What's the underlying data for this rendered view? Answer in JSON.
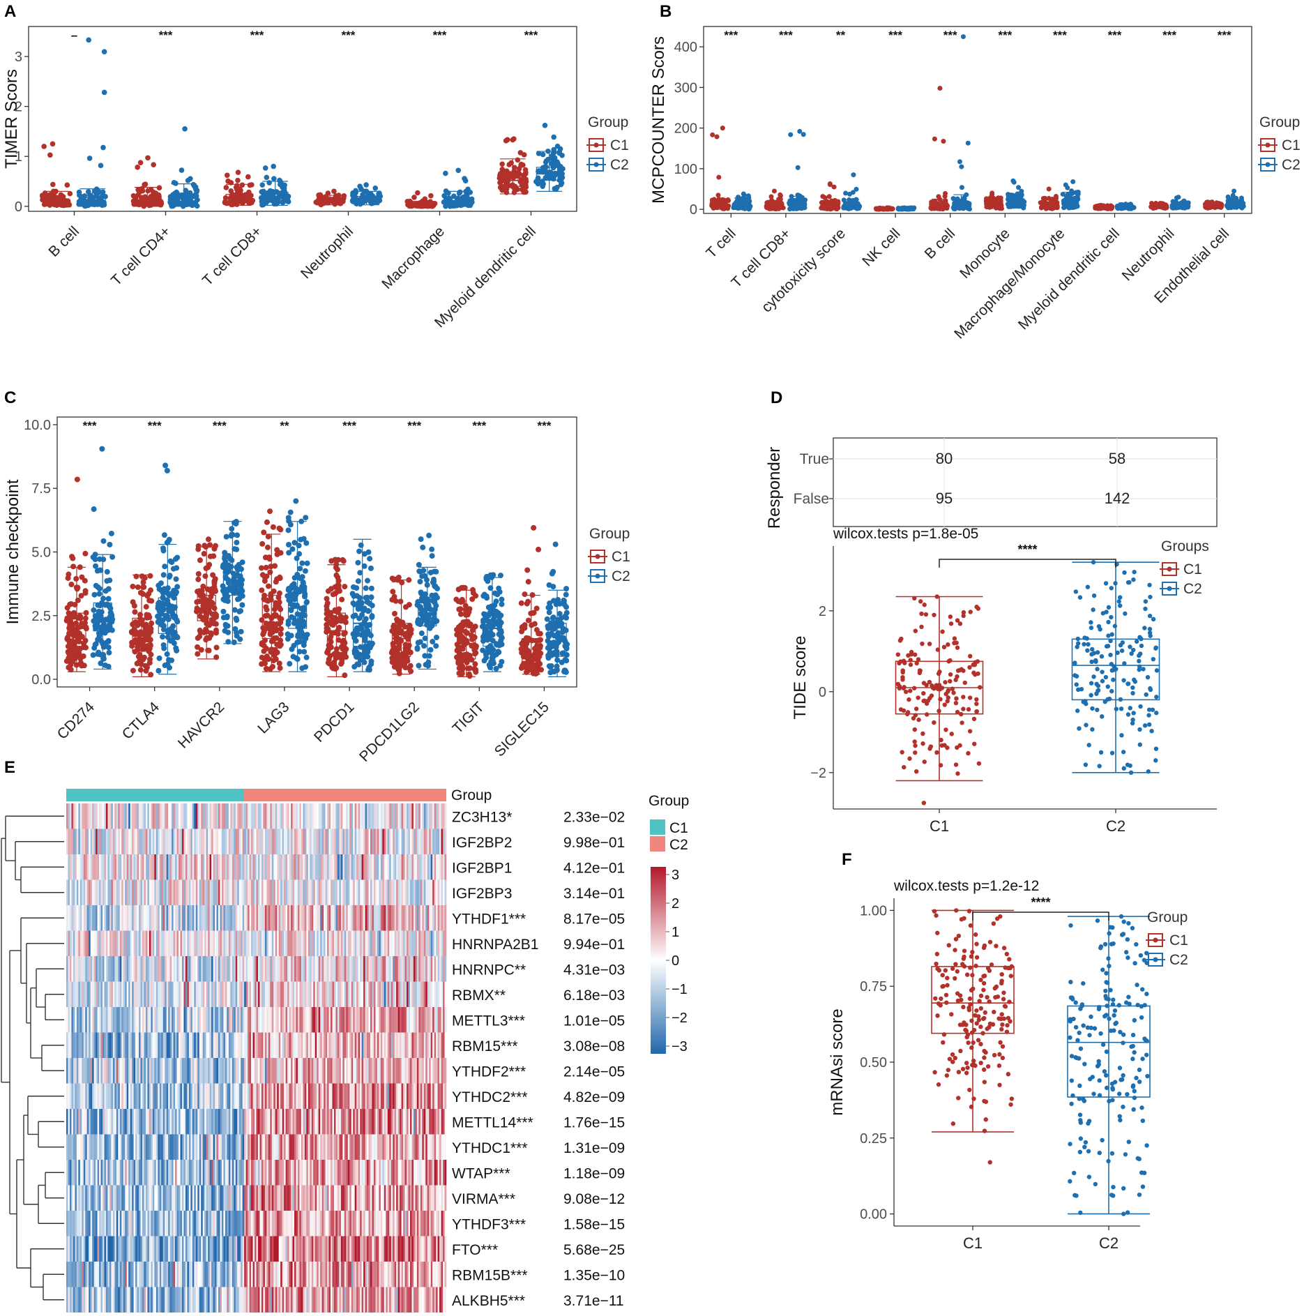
{
  "colors": {
    "c1": "#b2312a",
    "c2": "#1e6fb0",
    "c1_bar": "#4fc2c4",
    "c2_bar": "#f0877f",
    "heat_low": "#2166ac",
    "heat_mid": "#ffffff",
    "heat_high": "#b2182b"
  },
  "chart_data": [
    {
      "panel": "A",
      "type": "box-strip",
      "ylabel": "TIMER Scors",
      "ylim": [
        -0.1,
        3.6
      ],
      "yticks": [
        0,
        1,
        2,
        3
      ],
      "legend": {
        "title": "Group",
        "items": [
          "C1",
          "C2"
        ]
      },
      "categories": [
        "B cell",
        "T cell CD4+",
        "T cell CD8+",
        "Neutrophil",
        "Macrophage",
        "Myeloid dendritic cell"
      ],
      "significance": [
        "–",
        "***",
        "***",
        "***",
        "***",
        "***"
      ],
      "series": [
        {
          "name": "C1",
          "box": [
            [
              0.01,
              0.04,
              0.08,
              0.15,
              0.3
            ],
            [
              0.0,
              0.06,
              0.12,
              0.2,
              0.38
            ],
            [
              0.02,
              0.1,
              0.16,
              0.24,
              0.44
            ],
            [
              0.03,
              0.08,
              0.11,
              0.15,
              0.22
            ],
            [
              0.0,
              0.01,
              0.02,
              0.05,
              0.1
            ],
            [
              0.25,
              0.4,
              0.52,
              0.65,
              0.95
            ]
          ],
          "max": [
            1.25,
            0.97,
            0.68,
            0.3,
            0.27,
            1.35
          ]
        },
        {
          "name": "C2",
          "box": [
            [
              0.0,
              0.05,
              0.09,
              0.17,
              0.35
            ],
            [
              0.0,
              0.09,
              0.16,
              0.24,
              0.45
            ],
            [
              0.02,
              0.12,
              0.2,
              0.28,
              0.5
            ],
            [
              0.03,
              0.1,
              0.14,
              0.2,
              0.3
            ],
            [
              0.0,
              0.05,
              0.1,
              0.16,
              0.3
            ],
            [
              0.3,
              0.52,
              0.65,
              0.78,
              1.1
            ]
          ],
          "max": [
            3.33,
            1.55,
            0.8,
            0.43,
            0.72,
            1.62
          ]
        }
      ]
    },
    {
      "panel": "B",
      "type": "box-strip",
      "ylabel": "MCPCOUNTER Scors",
      "ylim": [
        -10,
        450
      ],
      "yticks": [
        0,
        100,
        200,
        300,
        400
      ],
      "legend": {
        "title": "Group",
        "items": [
          "C1",
          "C2"
        ]
      },
      "categories": [
        "T cell",
        "T cell CD8+",
        "cytotoxicity score",
        "NK cell",
        "B cell",
        "Monocyte",
        "Macrophage/Monocyte",
        "Myeloid dendritic cell",
        "Neutrophil",
        "Endothelial cell"
      ],
      "significance": [
        "***",
        "***",
        "**",
        "***",
        "***",
        "***",
        "***",
        "***",
        "***",
        "***"
      ],
      "series": [
        {
          "name": "C1",
          "box": [
            [
              0,
              5,
              9,
              14,
              25
            ],
            [
              0,
              4,
              8,
              13,
              22
            ],
            [
              0,
              4,
              7,
              12,
              22
            ],
            [
              0,
              1,
              1.5,
              2,
              3
            ],
            [
              0,
              3,
              6,
              12,
              25
            ],
            [
              2,
              7,
              11,
              16,
              28
            ],
            [
              1,
              6,
              10,
              15,
              27
            ],
            [
              1,
              3,
              4,
              6,
              9
            ],
            [
              2,
              5,
              7,
              9,
              13
            ],
            [
              2,
              6,
              8,
              11,
              16
            ]
          ],
          "max": [
            200,
            45,
            63,
            4,
            298,
            40,
            50,
            10,
            15,
            18
          ]
        },
        {
          "name": "C2",
          "box": [
            [
              0,
              5,
              9,
              15,
              28
            ],
            [
              0,
              6,
              11,
              18,
              32
            ],
            [
              0,
              5,
              9,
              14,
              24
            ],
            [
              0,
              1,
              1.5,
              2,
              3
            ],
            [
              0,
              5,
              10,
              18,
              36
            ],
            [
              3,
              10,
              15,
              22,
              38
            ],
            [
              3,
              10,
              16,
              24,
              42
            ],
            [
              1,
              4,
              5,
              7,
              11
            ],
            [
              3,
              6,
              9,
              12,
              18
            ],
            [
              3,
              8,
              11,
              15,
              24
            ]
          ],
          "max": [
            38,
            192,
            85,
            4,
            425,
            70,
            68,
            13,
            30,
            45
          ]
        }
      ]
    },
    {
      "panel": "C",
      "type": "box-strip",
      "ylabel": "Immune checkpoint",
      "ylim": [
        -0.3,
        10.3
      ],
      "yticks": [
        0.0,
        2.5,
        5.0,
        7.5,
        10.0
      ],
      "legend": {
        "title": "Group",
        "items": [
          "C1",
          "C2"
        ]
      },
      "categories": [
        "CD274",
        "CTLA4",
        "HAVCR2",
        "LAG3",
        "PDCD1",
        "PDCD1LG2",
        "TIGIT",
        "SIGLEC15"
      ],
      "significance": [
        "***",
        "***",
        "***",
        "**",
        "***",
        "***",
        "***",
        "***"
      ],
      "series": [
        {
          "name": "C1",
          "box": [
            [
              0.3,
              1.3,
              2.0,
              2.6,
              4.4
            ],
            [
              0.1,
              1.1,
              1.7,
              2.4,
              4.1
            ],
            [
              0.8,
              2.3,
              2.8,
              3.3,
              5.2
            ],
            [
              0.3,
              1.6,
              2.5,
              3.3,
              5.7
            ],
            [
              0.1,
              1.0,
              1.9,
              2.6,
              4.5
            ],
            [
              0.2,
              0.9,
              1.6,
              2.2,
              3.9
            ],
            [
              0.1,
              0.8,
              1.4,
              2.1,
              3.5
            ],
            [
              0.2,
              0.6,
              1.0,
              1.6,
              3.3
            ]
          ],
          "max": [
            7.85,
            4.1,
            5.5,
            6.6,
            4.7,
            4.0,
            3.6,
            5.95
          ]
        },
        {
          "name": "C2",
          "box": [
            [
              0.4,
              1.9,
              2.4,
              3.0,
              4.9
            ],
            [
              0.2,
              1.8,
              2.5,
              3.2,
              5.3
            ],
            [
              1.4,
              3.3,
              3.9,
              4.4,
              6.2
            ],
            [
              0.3,
              2.0,
              2.8,
              3.6,
              6.2
            ],
            [
              0.3,
              1.3,
              2.2,
              3.2,
              5.5
            ],
            [
              0.4,
              2.1,
              2.6,
              3.1,
              4.4
            ],
            [
              0.3,
              1.3,
              2.0,
              2.6,
              4.0
            ],
            [
              0.1,
              0.9,
              1.5,
              2.2,
              3.5
            ]
          ],
          "max": [
            9.05,
            8.4,
            6.2,
            7.0,
            5.5,
            5.65,
            4.1,
            5.3
          ]
        }
      ]
    },
    {
      "panel": "D",
      "type": "box-strip+table",
      "table": {
        "ylabel": "Responder",
        "rows": [
          "True",
          "False"
        ],
        "values": [
          [
            "80",
            "58"
          ],
          [
            "95",
            "142"
          ]
        ]
      },
      "ylabel": "TIDE score",
      "ylim": [
        -2.9,
        3.6
      ],
      "yticks": [
        -2,
        0,
        2
      ],
      "categories": [
        "C1",
        "C2"
      ],
      "test": "wilcox.tests p=1.8e-05",
      "significance": "****",
      "legend": {
        "title": "Groups",
        "items": [
          "C1",
          "C2"
        ]
      },
      "box": [
        [
          -2.2,
          -0.55,
          0.1,
          0.75,
          2.35
        ],
        [
          -2.0,
          -0.2,
          0.65,
          1.3,
          3.2
        ]
      ],
      "extremes": [
        [
          -2.75,
          2.35
        ],
        [
          -2.0,
          3.2
        ]
      ]
    },
    {
      "panel": "E",
      "type": "heatmap",
      "annotation_label": "Group",
      "legend": {
        "title": "Group",
        "items": [
          "C1",
          "C2"
        ]
      },
      "color_scale": [
        -3,
        3
      ],
      "scale_ticks": [
        "3",
        "2",
        "1",
        "0",
        "−1",
        "−2",
        "−3"
      ],
      "genes": [
        "ZC3H13*",
        "IGF2BP2",
        "IGF2BP1",
        "IGF2BP3",
        "YTHDF1***",
        "HNRNPA2B1",
        "HNRNPC**",
        "RBMX**",
        "METTL3***",
        "RBM15***",
        "YTHDF2***",
        "YTHDC2***",
        "METTL14***",
        "YTHDC1***",
        "WTAP***",
        "VIRMA***",
        "YTHDF3***",
        "FTO***",
        "RBM15B***",
        "ALKBH5***"
      ],
      "pvalues": [
        "2.33e−02",
        "9.98e−01",
        "4.12e−01",
        "3.14e−01",
        "8.17e−05",
        "9.94e−01",
        "4.31e−03",
        "6.18e−03",
        "1.01e−05",
        "3.08e−08",
        "2.14e−05",
        "4.82e−09",
        "1.76e−15",
        "1.31e−09",
        "1.18e−09",
        "9.08e−12",
        "1.58e−15",
        "5.68e−25",
        "1.35e−10",
        "3.71e−11"
      ],
      "mean_c1": [
        0.0,
        0.0,
        0.05,
        0.0,
        -0.25,
        0.0,
        -0.15,
        -0.15,
        -0.3,
        -0.35,
        -0.3,
        -0.4,
        -0.45,
        -0.4,
        -0.4,
        -0.45,
        -0.45,
        -0.55,
        -0.4,
        -0.4
      ],
      "mean_c2": [
        0.05,
        0.0,
        0.0,
        0.0,
        0.25,
        0.0,
        0.15,
        0.15,
        0.3,
        0.35,
        0.3,
        0.4,
        0.45,
        0.4,
        0.4,
        0.45,
        0.45,
        0.55,
        0.4,
        0.4
      ]
    },
    {
      "panel": "F",
      "type": "box-strip",
      "ylabel": "mRNAsi score",
      "ylim": [
        -0.04,
        1.04
      ],
      "yticks": [
        0.0,
        0.25,
        0.5,
        0.75,
        1.0
      ],
      "ytick_labels": [
        "0.00",
        "0.25",
        "0.50",
        "0.75",
        "1.00"
      ],
      "categories": [
        "C1",
        "C2"
      ],
      "test": "wilcox.tests p=1.2e-12",
      "significance": "****",
      "legend": {
        "title": "Group",
        "items": [
          "C1",
          "C2"
        ]
      },
      "box": [
        [
          0.27,
          0.595,
          0.695,
          0.815,
          1.0
        ],
        [
          0.0,
          0.385,
          0.565,
          0.685,
          0.98
        ]
      ],
      "extremes": [
        [
          0.17,
          1.0
        ],
        [
          0.0,
          0.98
        ]
      ]
    }
  ],
  "panel_labels": [
    "A",
    "B",
    "C",
    "D",
    "E",
    "F"
  ]
}
